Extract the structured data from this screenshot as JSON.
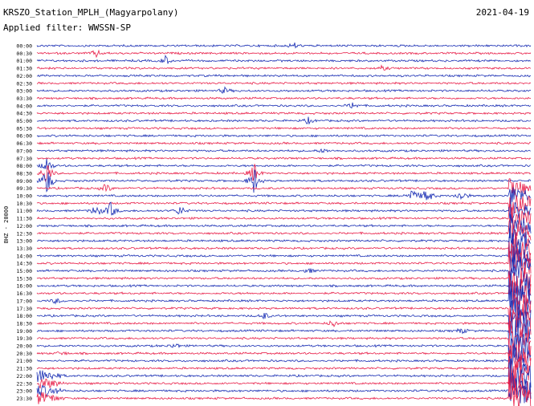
{
  "header": {
    "station": "KRSZO_Station_MPLH_(Magyarpolany)",
    "date": "2021-04-19",
    "filter": "Applied filter: WWSSN-SP",
    "channel_label": "BHZ - 20000"
  },
  "colors": {
    "even": "#1a2fb4",
    "odd": "#e8204a"
  },
  "chart_data": {
    "type": "line",
    "title": "KRSZO_Station_MPLH_(Magyarpolany)",
    "ylabel": "BHZ - 20000",
    "rows": [
      "00:00",
      "00:30",
      "01:00",
      "01:30",
      "02:00",
      "02:30",
      "03:00",
      "03:30",
      "04:00",
      "04:30",
      "05:00",
      "05:30",
      "06:00",
      "06:30",
      "07:00",
      "07:30",
      "08:00",
      "08:30",
      "09:00",
      "09:30",
      "10:00",
      "10:30",
      "11:00",
      "11:30",
      "12:00",
      "12:30",
      "13:00",
      "13:30",
      "14:00",
      "14:30",
      "15:00",
      "15:30",
      "16:00",
      "16:30",
      "17:00",
      "17:30",
      "18:00",
      "18:30",
      "19:00",
      "19:30",
      "20:00",
      "20:30",
      "21:00",
      "21:30",
      "22:00",
      "22:30",
      "23:00",
      "23:30"
    ],
    "events": [
      {
        "row": 0,
        "x": 0.52,
        "amp": 4
      },
      {
        "row": 1,
        "x": 0.12,
        "amp": 5
      },
      {
        "row": 2,
        "x": 0.26,
        "amp": 6
      },
      {
        "row": 3,
        "x": 0.7,
        "amp": 3
      },
      {
        "row": 6,
        "x": 0.38,
        "amp": 4
      },
      {
        "row": 8,
        "x": 0.64,
        "amp": 5
      },
      {
        "row": 10,
        "x": 0.55,
        "amp": 4
      },
      {
        "row": 14,
        "x": 0.58,
        "amp": 3
      },
      {
        "row": 16,
        "x": 0.02,
        "amp": 12
      },
      {
        "row": 17,
        "x": 0.02,
        "amp": 18
      },
      {
        "row": 18,
        "x": 0.02,
        "amp": 22
      },
      {
        "row": 17,
        "x": 0.44,
        "amp": 14
      },
      {
        "row": 18,
        "x": 0.44,
        "amp": 18
      },
      {
        "row": 20,
        "x": 0.76,
        "amp": 10
      },
      {
        "row": 20,
        "x": 0.79,
        "amp": 12
      },
      {
        "row": 20,
        "x": 0.86,
        "amp": 8
      },
      {
        "row": 19,
        "x": 0.14,
        "amp": 6
      },
      {
        "row": 22,
        "x": 0.12,
        "amp": 9
      },
      {
        "row": 22,
        "x": 0.15,
        "amp": 12
      },
      {
        "row": 22,
        "x": 0.29,
        "amp": 7
      },
      {
        "row": 30,
        "x": 0.55,
        "amp": 4
      },
      {
        "row": 34,
        "x": 0.04,
        "amp": 4
      },
      {
        "row": 36,
        "x": 0.46,
        "amp": 5
      },
      {
        "row": 37,
        "x": 0.6,
        "amp": 5
      },
      {
        "row": 38,
        "x": 0.86,
        "amp": 4
      },
      {
        "row": 40,
        "x": 0.28,
        "amp": 4
      },
      {
        "row": 41,
        "x": 0.05,
        "amp": 3
      }
    ],
    "late_burst": {
      "start_row": 19,
      "x": 0.955,
      "peak_amp": 30
    },
    "early_noise": {
      "rows": [
        44,
        45,
        46,
        47
      ],
      "x_end": 0.06,
      "amp": 8
    }
  }
}
